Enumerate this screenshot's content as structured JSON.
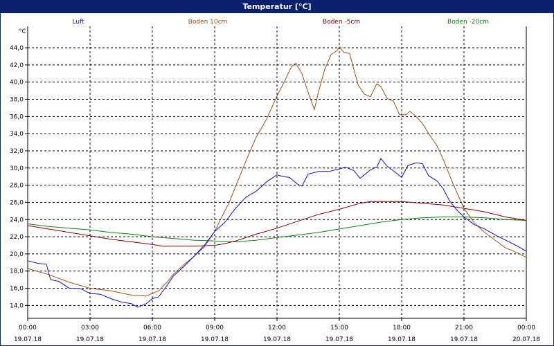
{
  "window": {
    "title": "Temperatur [°C]"
  },
  "colors": {
    "Luft": "#1010d0",
    "Boden 10cm": "#a05010",
    "Boden -5cm": "#800000",
    "Boden -20cm": "#108010",
    "grid": "#000000",
    "titlebar": "#0a1f6d"
  },
  "chart_data": {
    "type": "line",
    "title": "Temperatur [°C]",
    "ylabel": "°C",
    "xlabel": "",
    "ylim": [
      12.5,
      46.5
    ],
    "xlim": [
      0,
      24
    ],
    "grid": true,
    "legend_position": "top",
    "y_ticks": [
      "14,0",
      "16,0",
      "18,0",
      "20,0",
      "22,0",
      "24,0",
      "26,0",
      "28,0",
      "30,0",
      "32,0",
      "34,0",
      "36,0",
      "38,0",
      "40,0",
      "42,0",
      "44,0"
    ],
    "x_ticks": [
      {
        "time": "00:00",
        "date": "19.07.18"
      },
      {
        "time": "03:00",
        "date": "19.07.18"
      },
      {
        "time": "06:00",
        "date": "19.07.18"
      },
      {
        "time": "09:00",
        "date": "19.07.18"
      },
      {
        "time": "12:00",
        "date": "19.07.18"
      },
      {
        "time": "15:00",
        "date": "19.07.18"
      },
      {
        "time": "18:00",
        "date": "19.07.18"
      },
      {
        "time": "21:00",
        "date": "19.07.18"
      },
      {
        "time": "00:00",
        "date": "20.07.18"
      }
    ],
    "x_unit": "hours since 19.07.18 00:00",
    "series": [
      {
        "name": "Luft",
        "points": [
          [
            0,
            19.2
          ],
          [
            0.5,
            18.9
          ],
          [
            0.9,
            18.8
          ],
          [
            1.1,
            17.0
          ],
          [
            1.5,
            16.8
          ],
          [
            2.0,
            16.0
          ],
          [
            2.5,
            16.0
          ],
          [
            3.0,
            15.4
          ],
          [
            3.5,
            15.3
          ],
          [
            4.0,
            14.8
          ],
          [
            4.5,
            14.4
          ],
          [
            5.0,
            14.2
          ],
          [
            5.3,
            13.8
          ],
          [
            5.7,
            14.2
          ],
          [
            6.0,
            14.8
          ],
          [
            6.3,
            15.0
          ],
          [
            6.7,
            16.3
          ],
          [
            7.0,
            17.4
          ],
          [
            7.5,
            18.5
          ],
          [
            8.0,
            19.7
          ],
          [
            8.5,
            21.0
          ],
          [
            9.0,
            22.6
          ],
          [
            9.5,
            23.7
          ],
          [
            10.0,
            25.3
          ],
          [
            10.5,
            26.6
          ],
          [
            11.0,
            27.3
          ],
          [
            11.5,
            28.4
          ],
          [
            12.0,
            29.2
          ],
          [
            12.3,
            29.0
          ],
          [
            12.6,
            28.9
          ],
          [
            13.0,
            28.1
          ],
          [
            13.2,
            27.9
          ],
          [
            13.5,
            29.3
          ],
          [
            14.0,
            29.6
          ],
          [
            14.5,
            29.6
          ],
          [
            15.0,
            29.9
          ],
          [
            15.3,
            30.1
          ],
          [
            15.7,
            29.7
          ],
          [
            16.0,
            28.8
          ],
          [
            16.5,
            29.8
          ],
          [
            16.8,
            30.1
          ],
          [
            17.0,
            31.1
          ],
          [
            17.3,
            30.2
          ],
          [
            17.7,
            29.5
          ],
          [
            18.0,
            28.9
          ],
          [
            18.3,
            30.3
          ],
          [
            18.7,
            30.6
          ],
          [
            19.0,
            30.5
          ],
          [
            19.3,
            29.1
          ],
          [
            19.7,
            28.5
          ],
          [
            20.0,
            27.6
          ],
          [
            20.3,
            26.2
          ],
          [
            20.7,
            25.0
          ],
          [
            21.0,
            24.3
          ],
          [
            21.5,
            23.4
          ],
          [
            22.0,
            22.9
          ],
          [
            22.5,
            22.2
          ],
          [
            23.0,
            21.6
          ],
          [
            23.5,
            21.0
          ],
          [
            24.0,
            20.3
          ]
        ]
      },
      {
        "name": "Boden 10cm",
        "points": [
          [
            0,
            18.3
          ],
          [
            1.0,
            17.6
          ],
          [
            2.0,
            16.7
          ],
          [
            3.0,
            16.0
          ],
          [
            4.0,
            15.7
          ],
          [
            5.0,
            15.2
          ],
          [
            5.7,
            15.1
          ],
          [
            6.3,
            15.7
          ],
          [
            6.7,
            16.7
          ],
          [
            7.0,
            17.6
          ],
          [
            7.5,
            18.7
          ],
          [
            8.0,
            19.7
          ],
          [
            8.5,
            20.8
          ],
          [
            9.0,
            22.6
          ],
          [
            9.3,
            24.1
          ],
          [
            9.7,
            26.0
          ],
          [
            10.0,
            27.8
          ],
          [
            10.5,
            30.8
          ],
          [
            11.0,
            33.6
          ],
          [
            11.5,
            35.7
          ],
          [
            12.0,
            38.4
          ],
          [
            12.3,
            39.8
          ],
          [
            12.7,
            41.8
          ],
          [
            12.9,
            42.2
          ],
          [
            13.2,
            41.0
          ],
          [
            13.5,
            38.8
          ],
          [
            13.8,
            36.8
          ],
          [
            14.0,
            38.9
          ],
          [
            14.3,
            41.5
          ],
          [
            14.6,
            43.2
          ],
          [
            14.9,
            43.7
          ],
          [
            15.0,
            44.1
          ],
          [
            15.2,
            43.5
          ],
          [
            15.5,
            43.3
          ],
          [
            15.7,
            41.5
          ],
          [
            15.9,
            39.7
          ],
          [
            16.2,
            38.6
          ],
          [
            16.5,
            38.3
          ],
          [
            16.8,
            39.8
          ],
          [
            17.0,
            39.5
          ],
          [
            17.3,
            38.1
          ],
          [
            17.6,
            37.8
          ],
          [
            17.9,
            36.2
          ],
          [
            18.2,
            36.2
          ],
          [
            18.4,
            36.6
          ],
          [
            18.7,
            36.0
          ],
          [
            19.0,
            35.2
          ],
          [
            19.3,
            34.0
          ],
          [
            19.7,
            32.6
          ],
          [
            20.0,
            31.0
          ],
          [
            20.5,
            28.0
          ],
          [
            21.0,
            25.3
          ],
          [
            21.5,
            23.6
          ],
          [
            22.0,
            22.5
          ],
          [
            22.5,
            21.6
          ],
          [
            23.0,
            20.7
          ],
          [
            23.5,
            20.2
          ],
          [
            24.0,
            19.6
          ]
        ]
      },
      {
        "name": "Boden -5cm",
        "points": [
          [
            0,
            23.3
          ],
          [
            1.0,
            22.9
          ],
          [
            2.0,
            22.5
          ],
          [
            3.0,
            22.1
          ],
          [
            4.0,
            21.7
          ],
          [
            5.0,
            21.4
          ],
          [
            6.0,
            21.1
          ],
          [
            6.5,
            20.9
          ],
          [
            7.0,
            20.9
          ],
          [
            8.0,
            20.9
          ],
          [
            9.0,
            21.0
          ],
          [
            9.5,
            21.2
          ],
          [
            10.0,
            21.5
          ],
          [
            11.0,
            22.3
          ],
          [
            12.0,
            23.0
          ],
          [
            13.0,
            23.8
          ],
          [
            14.0,
            24.6
          ],
          [
            15.0,
            25.2
          ],
          [
            16.0,
            25.9
          ],
          [
            16.5,
            26.1
          ],
          [
            17.0,
            26.1
          ],
          [
            18.0,
            26.1
          ],
          [
            19.0,
            25.9
          ],
          [
            20.0,
            25.7
          ],
          [
            21.0,
            25.3
          ],
          [
            22.0,
            24.9
          ],
          [
            23.0,
            24.3
          ],
          [
            24.0,
            23.9
          ]
        ]
      },
      {
        "name": "Boden -20cm",
        "points": [
          [
            0,
            23.5
          ],
          [
            1.0,
            23.2
          ],
          [
            2.0,
            23.0
          ],
          [
            3.0,
            22.8
          ],
          [
            4.0,
            22.5
          ],
          [
            5.0,
            22.3
          ],
          [
            6.0,
            22.0
          ],
          [
            7.0,
            21.8
          ],
          [
            8.0,
            21.6
          ],
          [
            9.0,
            21.5
          ],
          [
            10.0,
            21.4
          ],
          [
            11.0,
            21.6
          ],
          [
            12.0,
            21.9
          ],
          [
            13.0,
            22.2
          ],
          [
            14.0,
            22.5
          ],
          [
            15.0,
            22.9
          ],
          [
            16.0,
            23.3
          ],
          [
            17.0,
            23.7
          ],
          [
            18.0,
            24.0
          ],
          [
            19.0,
            24.2
          ],
          [
            20.0,
            24.3
          ],
          [
            21.0,
            24.3
          ],
          [
            22.0,
            24.2
          ],
          [
            23.0,
            24.0
          ],
          [
            24.0,
            23.9
          ]
        ]
      }
    ]
  }
}
